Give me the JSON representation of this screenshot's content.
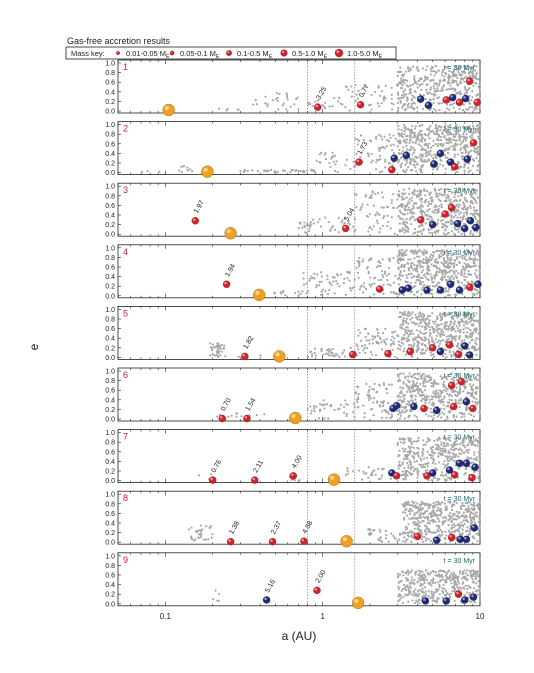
{
  "title": "Gas-free accretion results",
  "legend": {
    "label": "Mass key:",
    "items": [
      {
        "label": "0.01-0.05 M",
        "sub": "E"
      },
      {
        "label": "0.05-0.1 M",
        "sub": "E"
      },
      {
        "label": "0.1-0.5 M",
        "sub": "E"
      },
      {
        "label": "0.5-1.0 M",
        "sub": "E"
      },
      {
        "label": "1.0-5.0 M",
        "sub": "E"
      }
    ]
  },
  "time_label": "t = 30 Myr",
  "colors": {
    "planet_red": "#d42027",
    "planet_blue": "#1f2a7a",
    "giant_orange": "#f0a020",
    "scatter_grey": "#a8a8a8",
    "panel_number": "#d4145a",
    "time_label": "#1f6b6b"
  },
  "chart_data": {
    "type": "scatter",
    "xlabel": "a (AU)",
    "ylabel": "e",
    "xscale": "log",
    "xlim": [
      0.05,
      10
    ],
    "ylim": [
      0,
      1.0
    ],
    "xticks": [
      {
        "value": 0.1,
        "label": "0.1"
      },
      {
        "value": 1,
        "label": "1"
      },
      {
        "value": 10,
        "label": "10"
      }
    ],
    "yticks": [
      "0.0",
      "0.2",
      "0.4",
      "0.6",
      "0.8",
      "1.0"
    ],
    "reference_lines": [
      0.8,
      1.6
    ],
    "panels": [
      {
        "id": "1",
        "giant": {
          "a": 0.105,
          "e": 0.02
        },
        "planets": [
          {
            "a": 0.93,
            "e": 0.08,
            "c": "red",
            "label": "3.25"
          },
          {
            "a": 1.74,
            "e": 0.13,
            "c": "red",
            "label": "0.77"
          },
          {
            "a": 4.2,
            "e": 0.25,
            "c": "blue"
          },
          {
            "a": 4.7,
            "e": 0.12,
            "c": "blue"
          },
          {
            "a": 6.1,
            "e": 0.23,
            "c": "red"
          },
          {
            "a": 6.7,
            "e": 0.28,
            "c": "blue"
          },
          {
            "a": 7.4,
            "e": 0.18,
            "c": "red"
          },
          {
            "a": 8.1,
            "e": 0.26,
            "c": "blue"
          },
          {
            "a": 8.6,
            "e": 0.62,
            "c": "red"
          },
          {
            "a": 9.6,
            "e": 0.18,
            "c": "red"
          }
        ],
        "dust": [
          {
            "range": [
              0.22,
              0.32
            ],
            "n": 5,
            "emax": 0.05
          },
          {
            "range": [
              0.35,
              0.62
            ],
            "n": 22,
            "emax": 0.4
          },
          {
            "range": [
              0.62,
              1.4
            ],
            "n": 25,
            "emax": 0.3
          },
          {
            "range": [
              1.4,
              3.0
            ],
            "n": 40,
            "emax": 0.55
          },
          {
            "range": [
              3.0,
              10.0
            ],
            "n": 420,
            "emax": 0.95
          }
        ]
      },
      {
        "id": "2",
        "giant": {
          "a": 0.185,
          "e": 0.02
        },
        "planets": [
          {
            "a": 1.7,
            "e": 0.22,
            "c": "red",
            "label": "1.73"
          },
          {
            "a": 2.75,
            "e": 0.06,
            "c": "red"
          },
          {
            "a": 2.85,
            "e": 0.3,
            "c": "blue"
          },
          {
            "a": 3.4,
            "e": 0.36,
            "c": "blue"
          },
          {
            "a": 5.1,
            "e": 0.18,
            "c": "blue"
          },
          {
            "a": 5.6,
            "e": 0.4,
            "c": "blue"
          },
          {
            "a": 6.5,
            "e": 0.22,
            "c": "blue"
          },
          {
            "a": 6.9,
            "e": 0.12,
            "c": "red"
          },
          {
            "a": 8.3,
            "e": 0.28,
            "c": "blue"
          },
          {
            "a": 9.1,
            "e": 0.62,
            "c": "red"
          }
        ],
        "dust": [
          {
            "range": [
              0.07,
              0.11
            ],
            "n": 3,
            "emax": 0.03
          },
          {
            "range": [
              0.12,
              0.15
            ],
            "n": 10,
            "emax": 0.14
          },
          {
            "range": [
              0.3,
              0.9
            ],
            "n": 40,
            "emax": 0.06
          },
          {
            "range": [
              0.9,
              1.6
            ],
            "n": 25,
            "emax": 0.45
          },
          {
            "range": [
              1.6,
              3.0
            ],
            "n": 60,
            "emax": 0.8
          },
          {
            "range": [
              3.0,
              10.0
            ],
            "n": 500,
            "emax": 1.0
          }
        ]
      },
      {
        "id": "3",
        "giant": {
          "a": 0.26,
          "e": 0.02
        },
        "planets": [
          {
            "a": 0.155,
            "e": 0.28,
            "c": "red",
            "label": "1.97"
          },
          {
            "a": 1.4,
            "e": 0.12,
            "c": "red",
            "label": "5.04"
          },
          {
            "a": 4.2,
            "e": 0.3,
            "c": "red"
          },
          {
            "a": 5.0,
            "e": 0.2,
            "c": "blue"
          },
          {
            "a": 6.0,
            "e": 0.42,
            "c": "red"
          },
          {
            "a": 6.6,
            "e": 0.55,
            "c": "red"
          },
          {
            "a": 7.2,
            "e": 0.22,
            "c": "blue"
          },
          {
            "a": 8.0,
            "e": 0.12,
            "c": "blue"
          },
          {
            "a": 8.7,
            "e": 0.28,
            "c": "blue"
          },
          {
            "a": 9.4,
            "e": 0.14,
            "c": "blue"
          }
        ],
        "dust": [
          {
            "range": [
              0.7,
              0.85
            ],
            "n": 20,
            "emax": 0.25
          },
          {
            "range": [
              0.85,
              1.6
            ],
            "n": 25,
            "emax": 0.35
          },
          {
            "range": [
              1.6,
              3.0
            ],
            "n": 60,
            "emax": 0.9
          },
          {
            "range": [
              3.0,
              10.0
            ],
            "n": 450,
            "emax": 0.95
          }
        ]
      },
      {
        "id": "4",
        "giant": {
          "a": 0.395,
          "e": 0.02
        },
        "planets": [
          {
            "a": 0.245,
            "e": 0.24,
            "c": "red",
            "label": "1.94"
          },
          {
            "a": 2.3,
            "e": 0.14,
            "c": "red"
          },
          {
            "a": 3.2,
            "e": 0.12,
            "c": "blue"
          },
          {
            "a": 3.5,
            "e": 0.16,
            "c": "blue"
          },
          {
            "a": 4.6,
            "e": 0.12,
            "c": "blue"
          },
          {
            "a": 5.6,
            "e": 0.12,
            "c": "blue"
          },
          {
            "a": 6.5,
            "e": 0.24,
            "c": "blue"
          },
          {
            "a": 7.4,
            "e": 0.12,
            "c": "blue"
          },
          {
            "a": 8.6,
            "e": 0.18,
            "c": "red"
          },
          {
            "a": 9.7,
            "e": 0.24,
            "c": "blue"
          }
        ],
        "dust": [
          {
            "range": [
              0.44,
              0.75
            ],
            "n": 12,
            "emax": 0.1
          },
          {
            "range": [
              0.75,
              1.6
            ],
            "n": 55,
            "emax": 0.5
          },
          {
            "range": [
              1.6,
              3.0
            ],
            "n": 70,
            "emax": 0.8
          },
          {
            "range": [
              3.0,
              10.0
            ],
            "n": 500,
            "emax": 0.95
          }
        ]
      },
      {
        "id": "5",
        "giant": {
          "a": 0.53,
          "e": 0.02
        },
        "planets": [
          {
            "a": 0.32,
            "e": 0.02,
            "c": "red",
            "label": "1.82"
          },
          {
            "a": 1.55,
            "e": 0.06,
            "c": "red"
          },
          {
            "a": 2.6,
            "e": 0.08,
            "c": "red"
          },
          {
            "a": 3.6,
            "e": 0.12,
            "c": "red"
          },
          {
            "a": 5.0,
            "e": 0.2,
            "c": "red"
          },
          {
            "a": 5.6,
            "e": 0.12,
            "c": "blue"
          },
          {
            "a": 6.4,
            "e": 0.26,
            "c": "red"
          },
          {
            "a": 7.3,
            "e": 0.06,
            "c": "red"
          },
          {
            "a": 8.0,
            "e": 0.24,
            "c": "blue"
          },
          {
            "a": 8.6,
            "e": 0.05,
            "c": "blue"
          }
        ],
        "dust": [
          {
            "range": [
              0.19,
              0.24
            ],
            "n": 40,
            "emax": 0.3
          },
          {
            "range": [
              0.24,
              0.6
            ],
            "n": 10,
            "emax": 0.05
          },
          {
            "range": [
              0.8,
              1.6
            ],
            "n": 35,
            "emax": 0.2
          },
          {
            "range": [
              1.6,
              3.0
            ],
            "n": 70,
            "emax": 0.6
          },
          {
            "range": [
              3.0,
              10.0
            ],
            "n": 480,
            "emax": 0.95
          }
        ]
      },
      {
        "id": "6",
        "giant": {
          "a": 0.67,
          "e": 0.02
        },
        "planets": [
          {
            "a": 0.23,
            "e": 0.01,
            "c": "red",
            "label": "0.70"
          },
          {
            "a": 0.33,
            "e": 0.01,
            "c": "red",
            "label": "1.54"
          },
          {
            "a": 2.8,
            "e": 0.22,
            "c": "blue"
          },
          {
            "a": 2.95,
            "e": 0.28,
            "c": "blue"
          },
          {
            "a": 3.8,
            "e": 0.26,
            "c": "blue"
          },
          {
            "a": 4.4,
            "e": 0.22,
            "c": "red"
          },
          {
            "a": 5.3,
            "e": 0.18,
            "c": "blue"
          },
          {
            "a": 6.6,
            "e": 0.7,
            "c": "red"
          },
          {
            "a": 6.8,
            "e": 0.26,
            "c": "red"
          },
          {
            "a": 7.6,
            "e": 0.78,
            "c": "red"
          },
          {
            "a": 8.2,
            "e": 0.36,
            "c": "blue"
          },
          {
            "a": 9.0,
            "e": 0.22,
            "c": "red"
          }
        ],
        "dust": [
          {
            "range": [
              0.2,
              0.45
            ],
            "n": 12,
            "emax": 0.12
          },
          {
            "range": [
              0.8,
              1.6
            ],
            "n": 40,
            "emax": 0.4
          },
          {
            "range": [
              1.6,
              3.0
            ],
            "n": 70,
            "emax": 0.75
          },
          {
            "range": [
              3.0,
              10.0
            ],
            "n": 420,
            "emax": 0.95
          }
        ]
      },
      {
        "id": "7",
        "giant": {
          "a": 1.18,
          "e": 0.02
        },
        "planets": [
          {
            "a": 0.2,
            "e": 0.01,
            "c": "red",
            "label": "0.76"
          },
          {
            "a": 0.37,
            "e": 0.01,
            "c": "red",
            "label": "2.11"
          },
          {
            "a": 0.65,
            "e": 0.1,
            "c": "red",
            "label": "4.00"
          },
          {
            "a": 2.75,
            "e": 0.16,
            "c": "blue"
          },
          {
            "a": 2.95,
            "e": 0.1,
            "c": "red"
          },
          {
            "a": 4.6,
            "e": 0.1,
            "c": "red"
          },
          {
            "a": 5.0,
            "e": 0.16,
            "c": "blue"
          },
          {
            "a": 6.4,
            "e": 0.22,
            "c": "blue"
          },
          {
            "a": 6.9,
            "e": 0.12,
            "c": "red"
          },
          {
            "a": 7.4,
            "e": 0.36,
            "c": "blue"
          },
          {
            "a": 8.2,
            "e": 0.36,
            "c": "blue"
          },
          {
            "a": 8.9,
            "e": 0.06,
            "c": "red"
          },
          {
            "a": 9.3,
            "e": 0.28,
            "c": "blue"
          }
        ],
        "dust": [
          {
            "range": [
              0.14,
              0.2
            ],
            "n": 4,
            "emax": 0.15
          },
          {
            "range": [
              0.55,
              0.75
            ],
            "n": 6,
            "emax": 0.08
          },
          {
            "range": [
              1.4,
              3.0
            ],
            "n": 25,
            "emax": 0.3
          },
          {
            "range": [
              3.0,
              10.0
            ],
            "n": 400,
            "emax": 0.9
          }
        ]
      },
      {
        "id": "8",
        "giant": {
          "a": 1.42,
          "e": 0.02
        },
        "planets": [
          {
            "a": 0.26,
            "e": 0.01,
            "c": "red",
            "label": "1.38"
          },
          {
            "a": 0.48,
            "e": 0.01,
            "c": "red",
            "label": "2.37"
          },
          {
            "a": 0.76,
            "e": 0.02,
            "c": "red",
            "label": "4.58"
          },
          {
            "a": 4.0,
            "e": 0.12,
            "c": "red"
          },
          {
            "a": 5.3,
            "e": 0.04,
            "c": "blue"
          },
          {
            "a": 6.6,
            "e": 0.1,
            "c": "red"
          },
          {
            "a": 7.5,
            "e": 0.06,
            "c": "blue"
          },
          {
            "a": 8.2,
            "e": 0.06,
            "c": "blue"
          },
          {
            "a": 9.2,
            "e": 0.3,
            "c": "blue"
          }
        ],
        "dust": [
          {
            "range": [
              0.14,
              0.2
            ],
            "n": 30,
            "emax": 0.35
          },
          {
            "range": [
              1.9,
              3.2
            ],
            "n": 30,
            "emax": 0.3
          },
          {
            "range": [
              3.2,
              10.0
            ],
            "n": 480,
            "emax": 0.85
          }
        ]
      },
      {
        "id": "9",
        "giant": {
          "a": 1.68,
          "e": 0.02
        },
        "planets": [
          {
            "a": 0.44,
            "e": 0.08,
            "c": "blue",
            "label": "5.16"
          },
          {
            "a": 0.92,
            "e": 0.28,
            "c": "red",
            "label": "2.00"
          },
          {
            "a": 4.5,
            "e": 0.06,
            "c": "blue"
          },
          {
            "a": 6.1,
            "e": 0.06,
            "c": "blue"
          },
          {
            "a": 7.3,
            "e": 0.2,
            "c": "red"
          },
          {
            "a": 8.0,
            "e": 0.08,
            "c": "blue"
          },
          {
            "a": 9.1,
            "e": 0.14,
            "c": "blue"
          }
        ],
        "dust": [
          {
            "range": [
              0.2,
              0.23
            ],
            "n": 5,
            "emax": 0.45
          },
          {
            "range": [
              3.0,
              10.0
            ],
            "n": 380,
            "emax": 0.7
          }
        ]
      }
    ]
  }
}
